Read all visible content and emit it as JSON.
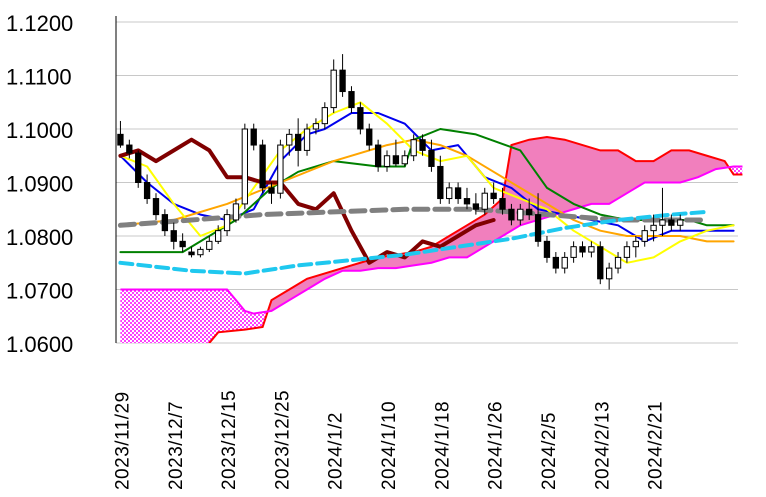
{
  "chart_data": {
    "type": "line",
    "title": "",
    "xlabel": "",
    "ylabel": "",
    "ylim": [
      1.06,
      1.12
    ],
    "y_ticks": [
      {
        "value": 1.12,
        "label": "1.1200"
      },
      {
        "value": 1.11,
        "label": "1.1100"
      },
      {
        "value": 1.1,
        "label": "1.1000"
      },
      {
        "value": 1.09,
        "label": "1.0900"
      },
      {
        "value": 1.08,
        "label": "1.0800"
      },
      {
        "value": 1.07,
        "label": "1.0700"
      },
      {
        "value": 1.06,
        "label": "1.0600"
      }
    ],
    "x_ticks": [
      {
        "index": 0,
        "label": "2023/11/29"
      },
      {
        "index": 6,
        "label": "2023/12/7"
      },
      {
        "index": 12,
        "label": "2023/12/15"
      },
      {
        "index": 18,
        "label": "2023/12/25"
      },
      {
        "index": 24,
        "label": "2024/1/2"
      },
      {
        "index": 30,
        "label": "2024/1/10"
      },
      {
        "index": 36,
        "label": "2024/1/18"
      },
      {
        "index": 42,
        "label": "2024/1/26"
      },
      {
        "index": 48,
        "label": "2024/2/5"
      },
      {
        "index": 54,
        "label": "2024/2/13"
      },
      {
        "index": 60,
        "label": "2024/2/21"
      }
    ],
    "x_count": 70,
    "grid": "horizontal",
    "legend": "none",
    "candles": [
      [
        1.099,
        1.1015,
        1.0965,
        1.097
      ],
      [
        1.097,
        1.098,
        1.0945,
        1.0955
      ],
      [
        1.0955,
        1.096,
        1.089,
        1.09
      ],
      [
        1.09,
        1.0915,
        1.086,
        1.087
      ],
      [
        1.087,
        1.088,
        1.083,
        1.084
      ],
      [
        1.084,
        1.085,
        1.08,
        1.081
      ],
      [
        1.081,
        1.0825,
        1.0775,
        1.079
      ],
      [
        1.079,
        1.0805,
        1.077,
        1.078
      ],
      [
        1.077,
        1.078,
        1.076,
        1.0765
      ],
      [
        1.0765,
        1.078,
        1.076,
        1.0775
      ],
      [
        1.0775,
        1.08,
        1.077,
        1.079
      ],
      [
        1.079,
        1.082,
        1.0785,
        1.081
      ],
      [
        1.081,
        1.085,
        1.08,
        1.084
      ],
      [
        1.083,
        1.087,
        1.0825,
        1.086
      ],
      [
        1.086,
        1.101,
        1.085,
        1.1
      ],
      [
        1.1,
        1.101,
        1.096,
        1.097
      ],
      [
        1.097,
        1.098,
        1.088,
        1.089
      ],
      [
        1.089,
        1.09,
        1.086,
        1.088
      ],
      [
        1.088,
        1.098,
        1.087,
        1.097
      ],
      [
        1.097,
        1.1,
        1.095,
        1.099
      ],
      [
        1.099,
        1.102,
        1.093,
        1.096
      ],
      [
        1.096,
        1.101,
        1.095,
        1.1
      ],
      [
        1.1,
        1.102,
        1.099,
        1.101
      ],
      [
        1.101,
        1.105,
        1.1,
        1.104
      ],
      [
        1.104,
        1.113,
        1.103,
        1.111
      ],
      [
        1.111,
        1.114,
        1.106,
        1.107
      ],
      [
        1.107,
        1.108,
        1.103,
        1.104
      ],
      [
        1.104,
        1.105,
        1.099,
        1.1
      ],
      [
        1.1,
        1.101,
        1.096,
        1.097
      ],
      [
        1.097,
        1.098,
        1.092,
        1.093
      ],
      [
        1.093,
        1.096,
        1.092,
        1.095
      ],
      [
        1.095,
        1.098,
        1.093,
        1.0935
      ],
      [
        1.0935,
        1.096,
        1.093,
        1.095
      ],
      [
        1.095,
        1.099,
        1.094,
        1.098
      ],
      [
        1.098,
        1.099,
        1.095,
        1.096
      ],
      [
        1.096,
        1.098,
        1.092,
        1.093
      ],
      [
        1.093,
        1.095,
        1.086,
        1.087
      ],
      [
        1.087,
        1.09,
        1.086,
        1.089
      ],
      [
        1.089,
        1.09,
        1.086,
        1.087
      ],
      [
        1.087,
        1.089,
        1.085,
        1.086
      ],
      [
        1.086,
        1.088,
        1.084,
        1.085
      ],
      [
        1.085,
        1.089,
        1.084,
        1.088
      ],
      [
        1.088,
        1.09,
        1.086,
        1.087
      ],
      [
        1.087,
        1.089,
        1.084,
        1.085
      ],
      [
        1.085,
        1.086,
        1.082,
        1.083
      ],
      [
        1.083,
        1.086,
        1.082,
        1.085
      ],
      [
        1.085,
        1.087,
        1.083,
        1.084
      ],
      [
        1.084,
        1.088,
        1.078,
        1.079
      ],
      [
        1.079,
        1.08,
        1.075,
        1.076
      ],
      [
        1.076,
        1.077,
        1.073,
        1.074
      ],
      [
        1.074,
        1.077,
        1.073,
        1.076
      ],
      [
        1.076,
        1.079,
        1.075,
        1.078
      ],
      [
        1.078,
        1.079,
        1.076,
        1.077
      ],
      [
        1.077,
        1.079,
        1.076,
        1.078
      ],
      [
        1.078,
        1.079,
        1.071,
        1.072
      ],
      [
        1.072,
        1.075,
        1.07,
        1.074
      ],
      [
        1.074,
        1.077,
        1.073,
        1.076
      ],
      [
        1.076,
        1.079,
        1.075,
        1.078
      ],
      [
        1.078,
        1.08,
        1.076,
        1.079
      ],
      [
        1.079,
        1.082,
        1.078,
        1.081
      ],
      [
        1.081,
        1.084,
        1.079,
        1.082
      ],
      [
        1.082,
        1.089,
        1.08,
        1.083
      ],
      [
        1.083,
        1.084,
        1.081,
        1.082
      ],
      [
        1.082,
        1.084,
        1.081,
        1.083
      ]
    ],
    "series": [
      {
        "color": "#0000ee",
        "width": 2,
        "dash": "",
        "values": [
          [
            0,
            1.095
          ],
          [
            3,
            1.09
          ],
          [
            6,
            1.086
          ],
          [
            9,
            1.084
          ],
          [
            12,
            1.083
          ],
          [
            15,
            1.085
          ],
          [
            18,
            1.094
          ],
          [
            21,
            1.099
          ],
          [
            23,
            1.1
          ],
          [
            26,
            1.103
          ],
          [
            29,
            1.103
          ],
          [
            32,
            1.101
          ],
          [
            35,
            1.096
          ],
          [
            38,
            1.097
          ],
          [
            41,
            1.091
          ],
          [
            44,
            1.089
          ],
          [
            47,
            1.085
          ],
          [
            50,
            1.084
          ],
          [
            53,
            1.083
          ],
          [
            56,
            1.082
          ],
          [
            59,
            1.079
          ],
          [
            62,
            1.081
          ],
          [
            65,
            1.081
          ],
          [
            69,
            1.081
          ]
        ]
      },
      {
        "color": "#008000",
        "width": 2,
        "dash": "",
        "values": [
          [
            0,
            1.077
          ],
          [
            7,
            1.077
          ],
          [
            10,
            1.08
          ],
          [
            13,
            1.083
          ],
          [
            17,
            1.089
          ],
          [
            20,
            1.092
          ],
          [
            24,
            1.094
          ],
          [
            29,
            1.093
          ],
          [
            32,
            1.093
          ],
          [
            33,
            1.098
          ],
          [
            36,
            1.1
          ],
          [
            40,
            1.099
          ],
          [
            45,
            1.096
          ],
          [
            48,
            1.089
          ],
          [
            51,
            1.086
          ],
          [
            54,
            1.084
          ],
          [
            57,
            1.083
          ],
          [
            60,
            1.083
          ],
          [
            64,
            1.083
          ],
          [
            66,
            1.082
          ],
          [
            69,
            1.082
          ]
        ]
      },
      {
        "color": "#ffa500",
        "width": 2,
        "dash": "",
        "values": [
          [
            0,
            1.082
          ],
          [
            6,
            1.083
          ],
          [
            12,
            1.086
          ],
          [
            18,
            1.09
          ],
          [
            24,
            1.094
          ],
          [
            30,
            1.097
          ],
          [
            33,
            1.098
          ],
          [
            36,
            1.097
          ],
          [
            39,
            1.095
          ],
          [
            42,
            1.092
          ],
          [
            45,
            1.089
          ],
          [
            48,
            1.086
          ],
          [
            51,
            1.083
          ],
          [
            54,
            1.081
          ],
          [
            57,
            1.08
          ],
          [
            60,
            1.08
          ],
          [
            63,
            1.08
          ],
          [
            66,
            1.079
          ],
          [
            69,
            1.079
          ]
        ]
      },
      {
        "color": "#ffff00",
        "width": 2,
        "dash": "",
        "values": [
          [
            0,
            1.095
          ],
          [
            3,
            1.093
          ],
          [
            6,
            1.086
          ],
          [
            9,
            1.08
          ],
          [
            12,
            1.082
          ],
          [
            15,
            1.089
          ],
          [
            18,
            1.096
          ],
          [
            21,
            1.1
          ],
          [
            24,
            1.103
          ],
          [
            27,
            1.105
          ],
          [
            30,
            1.101
          ],
          [
            33,
            1.096
          ],
          [
            36,
            1.094
          ],
          [
            39,
            1.095
          ],
          [
            42,
            1.089
          ],
          [
            45,
            1.087
          ],
          [
            48,
            1.085
          ],
          [
            51,
            1.081
          ],
          [
            54,
            1.078
          ],
          [
            57,
            1.075
          ],
          [
            60,
            1.076
          ],
          [
            63,
            1.079
          ],
          [
            66,
            1.081
          ],
          [
            69,
            1.082
          ]
        ]
      },
      {
        "color": "#800000",
        "width": 4,
        "dash": "",
        "values": [
          [
            0,
            1.095
          ],
          [
            2,
            1.096
          ],
          [
            4,
            1.094
          ],
          [
            6,
            1.096
          ],
          [
            8,
            1.098
          ],
          [
            10,
            1.096
          ],
          [
            12,
            1.091
          ],
          [
            14,
            1.091
          ],
          [
            16,
            1.09
          ],
          [
            18,
            1.09
          ],
          [
            20,
            1.086
          ],
          [
            22,
            1.085
          ],
          [
            24,
            1.088
          ],
          [
            26,
            1.081
          ],
          [
            28,
            1.075
          ],
          [
            30,
            1.077
          ],
          [
            32,
            1.076
          ],
          [
            34,
            1.079
          ],
          [
            36,
            1.078
          ],
          [
            38,
            1.08
          ],
          [
            40,
            1.082
          ],
          [
            42,
            1.083
          ]
        ]
      },
      {
        "color": "#808080",
        "width": 5,
        "dash": "14 7",
        "values": [
          [
            0,
            1.082
          ],
          [
            8,
            1.083
          ],
          [
            16,
            1.084
          ],
          [
            24,
            1.0845
          ],
          [
            32,
            1.085
          ],
          [
            40,
            1.085
          ],
          [
            48,
            1.084
          ],
          [
            56,
            1.083
          ],
          [
            64,
            1.083
          ],
          [
            66,
            1.083
          ]
        ]
      },
      {
        "color": "#1fc8ef",
        "width": 4,
        "dash": "12 6",
        "values": [
          [
            0,
            1.075
          ],
          [
            8,
            1.0735
          ],
          [
            14,
            1.073
          ],
          [
            20,
            1.0745
          ],
          [
            26,
            1.0755
          ],
          [
            32,
            1.0765
          ],
          [
            38,
            1.078
          ],
          [
            44,
            1.0795
          ],
          [
            50,
            1.0815
          ],
          [
            56,
            1.083
          ],
          [
            62,
            1.084
          ],
          [
            66,
            1.0845
          ]
        ]
      }
    ],
    "cloud": {
      "fill": "#f17fbd",
      "span_a_color": "#ff0000",
      "span_b_color": "#ff00ff",
      "span_a": [
        [
          0,
          1.056
        ],
        [
          9,
          1.058
        ],
        [
          11,
          1.062
        ],
        [
          14,
          1.0625
        ],
        [
          16,
          1.063
        ],
        [
          17,
          1.068
        ],
        [
          19,
          1.07
        ],
        [
          21,
          1.072
        ],
        [
          23,
          1.073
        ],
        [
          25,
          1.074
        ],
        [
          27,
          1.075
        ],
        [
          29,
          1.076
        ],
        [
          31,
          1.0765
        ],
        [
          33,
          1.077
        ],
        [
          35,
          1.078
        ],
        [
          37,
          1.08
        ],
        [
          39,
          1.082
        ],
        [
          41,
          1.084
        ],
        [
          43,
          1.087
        ],
        [
          44,
          1.097
        ],
        [
          46,
          1.098
        ],
        [
          48,
          1.0985
        ],
        [
          50,
          1.098
        ],
        [
          52,
          1.097
        ],
        [
          54,
          1.096
        ],
        [
          56,
          1.096
        ],
        [
          58,
          1.094
        ],
        [
          60,
          1.094
        ],
        [
          62,
          1.096
        ],
        [
          64,
          1.096
        ],
        [
          66,
          1.095
        ],
        [
          68,
          1.094
        ],
        [
          69,
          1.0915
        ],
        [
          70,
          1.0915
        ]
      ],
      "span_b": [
        [
          0,
          1.07
        ],
        [
          10,
          1.07
        ],
        [
          12,
          1.07
        ],
        [
          13,
          1.068
        ],
        [
          14,
          1.066
        ],
        [
          15,
          1.0655
        ],
        [
          17,
          1.066
        ],
        [
          19,
          1.068
        ],
        [
          21,
          1.07
        ],
        [
          23,
          1.072
        ],
        [
          25,
          1.0735
        ],
        [
          27,
          1.0735
        ],
        [
          29,
          1.074
        ],
        [
          31,
          1.074
        ],
        [
          33,
          1.0745
        ],
        [
          35,
          1.075
        ],
        [
          37,
          1.076
        ],
        [
          39,
          1.076
        ],
        [
          41,
          1.078
        ],
        [
          43,
          1.08
        ],
        [
          45,
          1.082
        ],
        [
          47,
          1.083
        ],
        [
          49,
          1.084
        ],
        [
          51,
          1.085
        ],
        [
          53,
          1.086
        ],
        [
          55,
          1.086
        ],
        [
          57,
          1.088
        ],
        [
          59,
          1.09
        ],
        [
          61,
          1.09
        ],
        [
          63,
          1.09
        ],
        [
          65,
          1.091
        ],
        [
          67,
          1.0925
        ],
        [
          69,
          1.093
        ],
        [
          70,
          1.093
        ]
      ]
    }
  }
}
